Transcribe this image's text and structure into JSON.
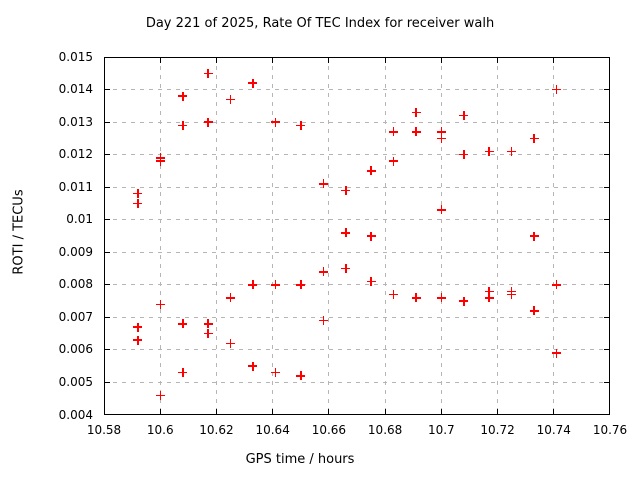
{
  "window": {
    "background": "#ffffff"
  },
  "chart_data": {
    "type": "scatter",
    "title": "Day 221 of 2025, Rate Of TEC Index for receiver walh",
    "xlabel": "GPS time / hours",
    "ylabel": "ROTI / TECUs",
    "xlim": [
      10.58,
      10.76
    ],
    "ylim": [
      0.004,
      0.015
    ],
    "xtick_values": [
      10.58,
      10.6,
      10.62,
      10.64,
      10.66,
      10.68,
      10.7,
      10.72,
      10.74,
      10.76
    ],
    "xtick_labels": [
      "10.58",
      "10.6",
      "10.62",
      "10.64",
      "10.66",
      "10.68",
      "10.7",
      "10.72",
      "10.74",
      "10.76"
    ],
    "ytick_values": [
      0.004,
      0.005,
      0.006,
      0.007,
      0.008,
      0.009,
      0.01,
      0.011,
      0.012,
      0.013,
      0.014,
      0.015
    ],
    "ytick_labels": [
      "0.004",
      "0.005",
      "0.006",
      "0.007",
      "0.008",
      "0.009",
      "0.01",
      "0.011",
      "0.012",
      "0.013",
      "0.014",
      "0.015"
    ],
    "grid": true,
    "legend": "none",
    "marker": "+",
    "marker_color": "#ff0000",
    "grid_color": "#b5b5b5",
    "points": [
      [
        10.592,
        0.0108
      ],
      [
        10.592,
        0.0105
      ],
      [
        10.592,
        0.0067
      ],
      [
        10.592,
        0.0063
      ],
      [
        10.6,
        0.0119
      ],
      [
        10.6,
        0.0118
      ],
      [
        10.6,
        0.0074
      ],
      [
        10.6,
        0.0046
      ],
      [
        10.608,
        0.0138
      ],
      [
        10.608,
        0.0129
      ],
      [
        10.608,
        0.0068
      ],
      [
        10.608,
        0.0053
      ],
      [
        10.617,
        0.0145
      ],
      [
        10.617,
        0.013
      ],
      [
        10.617,
        0.0068
      ],
      [
        10.617,
        0.0065
      ],
      [
        10.625,
        0.0137
      ],
      [
        10.625,
        0.0076
      ],
      [
        10.625,
        0.0062
      ],
      [
        10.633,
        0.0142
      ],
      [
        10.633,
        0.008
      ],
      [
        10.633,
        0.0055
      ],
      [
        10.641,
        0.013
      ],
      [
        10.641,
        0.008
      ],
      [
        10.641,
        0.0053
      ],
      [
        10.65,
        0.0129
      ],
      [
        10.65,
        0.008
      ],
      [
        10.65,
        0.0052
      ],
      [
        10.658,
        0.0111
      ],
      [
        10.658,
        0.0084
      ],
      [
        10.658,
        0.0069
      ],
      [
        10.666,
        0.0109
      ],
      [
        10.666,
        0.0096
      ],
      [
        10.666,
        0.0085
      ],
      [
        10.675,
        0.0115
      ],
      [
        10.675,
        0.0095
      ],
      [
        10.675,
        0.0081
      ],
      [
        10.683,
        0.0127
      ],
      [
        10.683,
        0.0118
      ],
      [
        10.683,
        0.0077
      ],
      [
        10.691,
        0.0133
      ],
      [
        10.691,
        0.0127
      ],
      [
        10.691,
        0.0076
      ],
      [
        10.7,
        0.0127
      ],
      [
        10.7,
        0.0125
      ],
      [
        10.7,
        0.0103
      ],
      [
        10.7,
        0.0076
      ],
      [
        10.708,
        0.0132
      ],
      [
        10.708,
        0.012
      ],
      [
        10.708,
        0.0075
      ],
      [
        10.717,
        0.0121
      ],
      [
        10.717,
        0.0078
      ],
      [
        10.717,
        0.0076
      ],
      [
        10.725,
        0.0121
      ],
      [
        10.725,
        0.0078
      ],
      [
        10.725,
        0.0077
      ],
      [
        10.733,
        0.0125
      ],
      [
        10.733,
        0.0095
      ],
      [
        10.733,
        0.0072
      ],
      [
        10.741,
        0.014
      ],
      [
        10.741,
        0.008
      ],
      [
        10.741,
        0.0059
      ]
    ]
  }
}
